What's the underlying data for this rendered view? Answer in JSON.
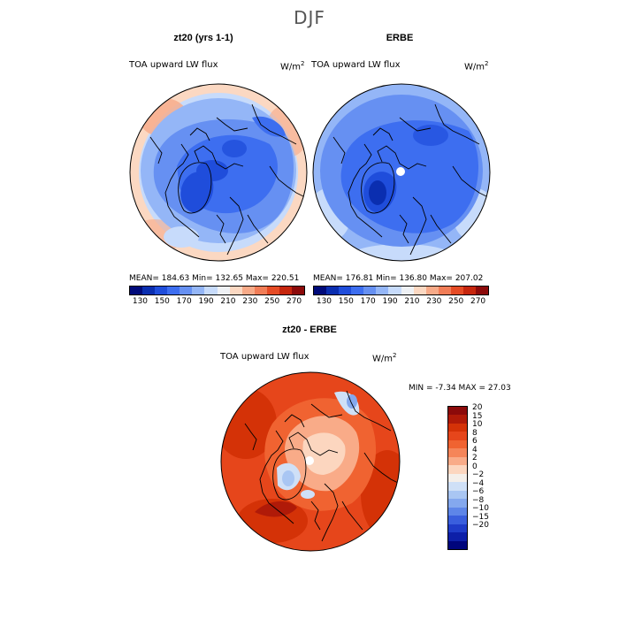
{
  "figure": {
    "suptitle": "DJF",
    "variable_label": "TOA upward LW flux",
    "units_base": "W/m",
    "units_exp": "2"
  },
  "panels": [
    {
      "title": "zt20 (yrs 1-1)",
      "stats": "MEAN= 184.63   Min= 132.65   Max= 220.51"
    },
    {
      "title": "ERBE",
      "stats": "MEAN= 176.81   Min= 136.80   Max= 207.02"
    },
    {
      "title": "zt20 - ERBE",
      "stats": "MIN =   -7.34  MAX =   27.03"
    }
  ],
  "abs_colorbar": {
    "ticks": [
      "130",
      "150",
      "170",
      "190",
      "210",
      "230",
      "250",
      "270"
    ],
    "colors": [
      "#000a7a",
      "#0a2eb0",
      "#1f4ddb",
      "#3d6ef0",
      "#6690f2",
      "#94b6f7",
      "#c7dbfb",
      "#eef1f5",
      "#fbd8c2",
      "#f7aa88",
      "#f17d57",
      "#e54b25",
      "#c6260d",
      "#8c0a0a"
    ]
  },
  "diff_colorbar": {
    "labels": [
      "20",
      "15",
      "10",
      "8",
      "6",
      "4",
      "2",
      "0",
      "−2",
      "−4",
      "−6",
      "−8",
      "−10",
      "−15",
      "−20"
    ],
    "colors": [
      "#8c0a0a",
      "#b01a08",
      "#d43207",
      "#e6461b",
      "#f06331",
      "#f58559",
      "#f9ab88",
      "#fcd6bf",
      "#f4efea",
      "#cfe0f7",
      "#a9c6f3",
      "#84a8ee",
      "#5e86e8",
      "#3a5fdd",
      "#1f3cc8",
      "#0d1fa8",
      "#00057c"
    ]
  },
  "colors": {
    "land_contour": "#000000",
    "missing_pole": "#ffffff"
  }
}
